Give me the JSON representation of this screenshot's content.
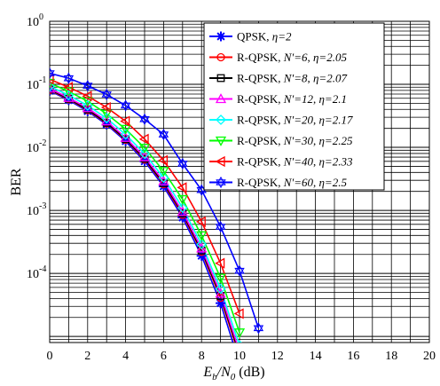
{
  "chart_data": {
    "type": "line",
    "xlabel": {
      "main": "E",
      "sub1": "b",
      "slash": "/N",
      "sub2": "0",
      "unit": " (dB)"
    },
    "ylabel": "BER",
    "x_ticks": [
      "0",
      "2",
      "4",
      "6",
      "8",
      "10",
      "12",
      "14",
      "16",
      "18",
      "20"
    ],
    "y_ticks": [
      {
        "base": "10",
        "exp": "0"
      },
      {
        "base": "10",
        "exp": "-1"
      },
      {
        "base": "10",
        "exp": "-2"
      },
      {
        "base": "10",
        "exp": "-3"
      },
      {
        "base": "10",
        "exp": "-4"
      }
    ],
    "xlim": [
      0,
      20
    ],
    "ylim": [
      8e-06,
      1
    ],
    "y_scale": "log",
    "grid": true,
    "legend_position": "top-right",
    "x": [
      0,
      1,
      2,
      3,
      4,
      5,
      6,
      7,
      8,
      9,
      10,
      11
    ],
    "series": [
      {
        "label": "QPSK, ",
        "eta": "η=2",
        "color": "#0000ff",
        "marker": "asterisk",
        "values": [
          0.079,
          0.056,
          0.0375,
          0.023,
          0.0125,
          0.006,
          0.0024,
          0.00077,
          0.00019,
          3.37e-05,
          3.7e-06,
          null
        ]
      },
      {
        "label": "R-QPSK, ",
        "nlabel": "N'=6",
        "eta": "η=2.05",
        "color": "#ff0000",
        "marker": "circle",
        "values": [
          0.081,
          0.058,
          0.039,
          0.024,
          0.0132,
          0.0064,
          0.0026,
          0.00085,
          0.00022,
          4.1e-05,
          4.8e-06,
          null
        ]
      },
      {
        "label": "R-QPSK, ",
        "nlabel": "N'=8",
        "eta": "η=2.07",
        "color": "#000000",
        "marker": "square",
        "values": [
          0.083,
          0.059,
          0.04,
          0.0245,
          0.0135,
          0.0066,
          0.0027,
          0.0009,
          0.00023,
          4.4e-05,
          5.2e-06,
          null
        ]
      },
      {
        "label": "R-QPSK, ",
        "nlabel": "N'=12",
        "eta": "η=2.1",
        "color": "#ff00ff",
        "marker": "triangle-up",
        "values": [
          0.086,
          0.061,
          0.042,
          0.026,
          0.0142,
          0.007,
          0.0029,
          0.00095,
          0.00025,
          4.8e-05,
          5.8e-06,
          null
        ]
      },
      {
        "label": "R-QPSK, ",
        "nlabel": "N'=20",
        "eta": "η=2.17",
        "color": "#00ffff",
        "marker": "diamond",
        "values": [
          0.093,
          0.067,
          0.046,
          0.029,
          0.016,
          0.0079,
          0.0033,
          0.0011,
          0.00029,
          5.7e-05,
          7.2e-06,
          null
        ]
      },
      {
        "label": "R-QPSK, ",
        "nlabel": "N'=30",
        "eta": "η=2.25",
        "color": "#00ff00",
        "marker": "triangle-down",
        "values": [
          0.105,
          0.077,
          0.054,
          0.034,
          0.0195,
          0.0098,
          0.0042,
          0.0015,
          0.0004,
          8.5e-05,
          1.15e-05,
          null
        ]
      },
      {
        "label": "R-QPSK, ",
        "nlabel": "N'=40",
        "eta": "η=2.33",
        "color": "#ff0000",
        "marker": "triangle-left",
        "values": [
          0.12,
          0.09,
          0.065,
          0.043,
          0.026,
          0.0135,
          0.0062,
          0.0023,
          0.00066,
          0.000145,
          2.3e-05,
          null
        ]
      },
      {
        "label": "R-QPSK, ",
        "nlabel": "N'=60",
        "eta": "η=2.5",
        "color": "#0000ff",
        "marker": "hexagram",
        "values": [
          0.15,
          0.125,
          0.095,
          0.069,
          0.046,
          0.028,
          0.016,
          0.0055,
          0.0021,
          0.00055,
          0.00011,
          1.35e-05
        ]
      }
    ]
  }
}
